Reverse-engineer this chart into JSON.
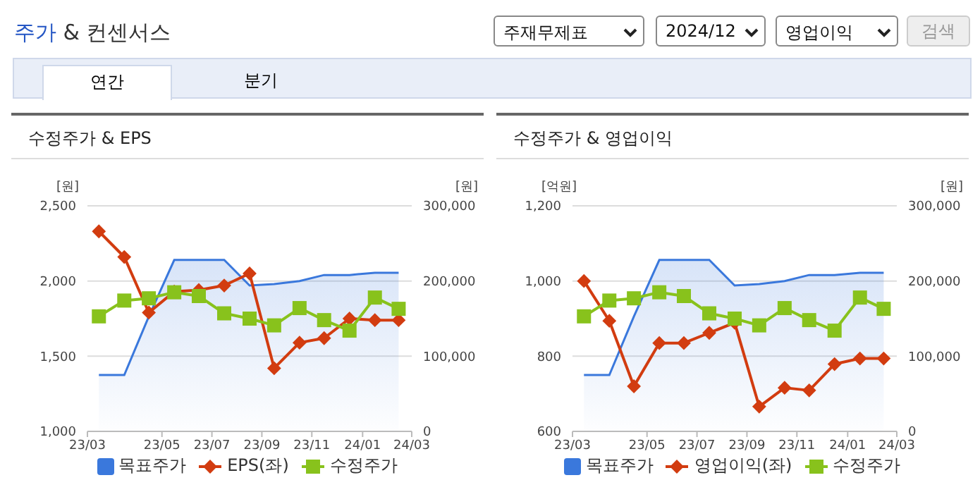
{
  "chart_data": [
    {
      "type": "other",
      "title": "주가 & 컨센서스",
      "annotations": [
        "주재무제표",
        "2024/12",
        "영업이익",
        "검색",
        "연간",
        "분기"
      ]
    },
    {
      "type": "line",
      "title": "수정주가 & EPS",
      "ylabel": "[원]",
      "y2label": "[원]",
      "x": [
        "2023-03-15",
        "2023-04-15",
        "2023-05-15",
        "2023-06-15",
        "2023-07-15",
        "2023-08-15",
        "2023-09-15",
        "2023-10-15",
        "2023-11-15",
        "2023-12-15",
        "2024-01-15",
        "2024-02-15",
        "2024-03-15"
      ],
      "xlim": [
        "2023-03-01",
        "2024-03-31"
      ],
      "xticks": [
        {
          "value": "2023-03-01",
          "label": "23/03"
        },
        {
          "value": "2023-05-31",
          "label": "23/05"
        },
        {
          "value": "2023-07-31",
          "label": "23/07"
        },
        {
          "value": "2023-09-30",
          "label": "23/09"
        },
        {
          "value": "2023-11-30",
          "label": "23/11"
        },
        {
          "value": "2024-01-31",
          "label": "24/01"
        },
        {
          "value": "2024-03-31",
          "label": "24/03"
        }
      ],
      "ylim": [
        1000,
        2500
      ],
      "yticks": [
        {
          "value": 1000,
          "label": "1,000"
        },
        {
          "value": 1500,
          "label": "1,500"
        },
        {
          "value": 2000,
          "label": "2,000"
        },
        {
          "value": 2500,
          "label": "2,500"
        }
      ],
      "y2lim": [
        0,
        300000
      ],
      "y2ticks": [
        {
          "value": 0,
          "label": "0"
        },
        {
          "value": 100000,
          "label": "100,000"
        },
        {
          "value": 200000,
          "label": "200,000"
        },
        {
          "value": 300000,
          "label": "300,000"
        }
      ],
      "grid": "y",
      "legend": "bottom",
      "series": [
        {
          "name": "목표주가",
          "type": "area",
          "axis": "y2",
          "color": "#3a78dc",
          "marker": "none",
          "values": [
            75000,
            75000,
            153000,
            228000,
            228000,
            228000,
            194000,
            196000,
            200000,
            208000,
            208000,
            211000,
            211000
          ]
        },
        {
          "name": "EPS(좌)",
          "type": "line",
          "color": "#d23c10",
          "marker": "diamond",
          "values": [
            2330,
            2160,
            1790,
            1930,
            1940,
            1970,
            2050,
            1420,
            1590,
            1620,
            1750,
            1740,
            1740
          ]
        },
        {
          "name": "수정주가",
          "type": "line",
          "axis": "y2",
          "color": "#88c21c",
          "marker": "square",
          "values": [
            153000,
            174000,
            177000,
            185000,
            180000,
            157000,
            150000,
            141000,
            164000,
            148000,
            134000,
            178000,
            163000
          ]
        }
      ]
    },
    {
      "type": "line",
      "title": "수정주가 & 영업이익",
      "ylabel": "[억원]",
      "y2label": "[원]",
      "x": [
        "2023-03-15",
        "2023-04-15",
        "2023-05-15",
        "2023-06-15",
        "2023-07-15",
        "2023-08-15",
        "2023-09-15",
        "2023-10-15",
        "2023-11-15",
        "2023-12-15",
        "2024-01-15",
        "2024-02-15",
        "2024-03-15"
      ],
      "xlim": [
        "2023-03-01",
        "2024-03-31"
      ],
      "xticks": [
        {
          "value": "2023-03-01",
          "label": "23/03"
        },
        {
          "value": "2023-05-31",
          "label": "23/05"
        },
        {
          "value": "2023-07-31",
          "label": "23/07"
        },
        {
          "value": "2023-09-30",
          "label": "23/09"
        },
        {
          "value": "2023-11-30",
          "label": "23/11"
        },
        {
          "value": "2024-01-31",
          "label": "24/01"
        },
        {
          "value": "2024-03-31",
          "label": "24/03"
        }
      ],
      "ylim": [
        600,
        1200
      ],
      "yticks": [
        {
          "value": 600,
          "label": "600"
        },
        {
          "value": 800,
          "label": "800"
        },
        {
          "value": 1000,
          "label": "1,000"
        },
        {
          "value": 1200,
          "label": "1,200"
        }
      ],
      "y2lim": [
        0,
        300000
      ],
      "y2ticks": [
        {
          "value": 0,
          "label": "0"
        },
        {
          "value": 100000,
          "label": "100,000"
        },
        {
          "value": 200000,
          "label": "200,000"
        },
        {
          "value": 300000,
          "label": "300,000"
        }
      ],
      "grid": "y",
      "legend": "bottom",
      "series": [
        {
          "name": "목표주가",
          "type": "area",
          "axis": "y2",
          "color": "#3a78dc",
          "marker": "none",
          "values": [
            75000,
            75000,
            153000,
            228000,
            228000,
            228000,
            194000,
            196000,
            200000,
            208000,
            208000,
            211000,
            211000
          ]
        },
        {
          "name": "영업이익(좌)",
          "type": "line",
          "color": "#d23c10",
          "marker": "diamond",
          "values": [
            1000,
            894,
            720,
            835,
            835,
            862,
            889,
            666,
            716,
            709,
            779,
            794,
            794
          ]
        },
        {
          "name": "수정주가",
          "type": "line",
          "axis": "y2",
          "color": "#88c21c",
          "marker": "square",
          "values": [
            153000,
            174000,
            177000,
            185000,
            180000,
            157000,
            150000,
            141000,
            164000,
            148000,
            134000,
            178000,
            163000
          ]
        }
      ]
    }
  ]
}
